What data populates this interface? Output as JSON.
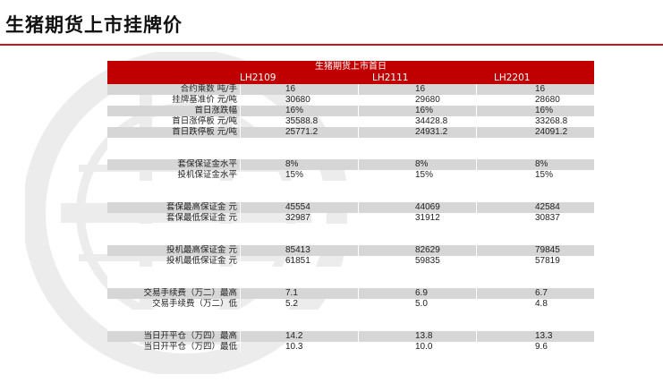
{
  "page": {
    "title": "生猪期货上市挂牌价"
  },
  "table": {
    "header_title": "生猪期货上市首日",
    "columns": [
      "LH2109",
      "LH2111",
      "LH2201"
    ],
    "rows": [
      {
        "label": "合约乘数 吨/手",
        "values": [
          "16",
          "16",
          "16"
        ],
        "shade": true
      },
      {
        "label": "挂牌基准价 元/吨",
        "values": [
          "30680",
          "29680",
          "28680"
        ],
        "shade": false
      },
      {
        "label": "首日涨跌幅",
        "values": [
          "16%",
          "16%",
          "16%"
        ],
        "shade": true
      },
      {
        "label": "首日涨停板 元/吨",
        "values": [
          "35588.8",
          "34428.8",
          "33268.8"
        ],
        "shade": false
      },
      {
        "label": "首日跌停板 元/吨",
        "values": [
          "25771.2",
          "24931.2",
          "24091.2"
        ],
        "shade": true
      },
      {
        "label": "",
        "values": [
          "",
          "",
          ""
        ],
        "shade": false
      },
      {
        "label": "",
        "values": [
          "",
          "",
          ""
        ],
        "shade": false
      },
      {
        "label": "套保保证金水平",
        "values": [
          "8%",
          "8%",
          "8%"
        ],
        "shade": true
      },
      {
        "label": "投机保证金水平",
        "values": [
          "15%",
          "15%",
          "15%"
        ],
        "shade": false
      },
      {
        "label": "",
        "values": [
          "",
          "",
          ""
        ],
        "shade": false
      },
      {
        "label": "",
        "values": [
          "",
          "",
          ""
        ],
        "shade": false
      },
      {
        "label": "套保最高保证金 元",
        "values": [
          "45554",
          "44069",
          "42584"
        ],
        "shade": true
      },
      {
        "label": "套保最低保证金 元",
        "values": [
          "32987",
          "31912",
          "30837"
        ],
        "shade": false
      },
      {
        "label": "",
        "values": [
          "",
          "",
          ""
        ],
        "shade": false
      },
      {
        "label": "",
        "values": [
          "",
          "",
          ""
        ],
        "shade": false
      },
      {
        "label": "投机最高保证金 元",
        "values": [
          "85413",
          "82629",
          "79845"
        ],
        "shade": true
      },
      {
        "label": "投机最低保证金 元",
        "values": [
          "61851",
          "59835",
          "57819"
        ],
        "shade": false
      },
      {
        "label": "",
        "values": [
          "",
          "",
          ""
        ],
        "shade": false
      },
      {
        "label": "",
        "values": [
          "",
          "",
          ""
        ],
        "shade": false
      },
      {
        "label": "交易手续费（万二）最高",
        "values": [
          "7.1",
          "6.9",
          "6.7"
        ],
        "shade": true
      },
      {
        "label": "交易手续费（万二）低",
        "values": [
          "5.2",
          "5.0",
          "4.8"
        ],
        "shade": false
      },
      {
        "label": "",
        "values": [
          "",
          "",
          ""
        ],
        "shade": false
      },
      {
        "label": "",
        "values": [
          "",
          "",
          ""
        ],
        "shade": false
      },
      {
        "label": "当日开平仓（万四）最高",
        "values": [
          "14.2",
          "13.8",
          "13.3"
        ],
        "shade": true
      },
      {
        "label": "当日开平仓（万四）最低",
        "values": [
          "10.3",
          "10.0",
          "9.6"
        ],
        "shade": false
      }
    ]
  },
  "colors": {
    "accent": "#c00000",
    "rule": "#c8161d",
    "shade": "#d6d6d6"
  }
}
